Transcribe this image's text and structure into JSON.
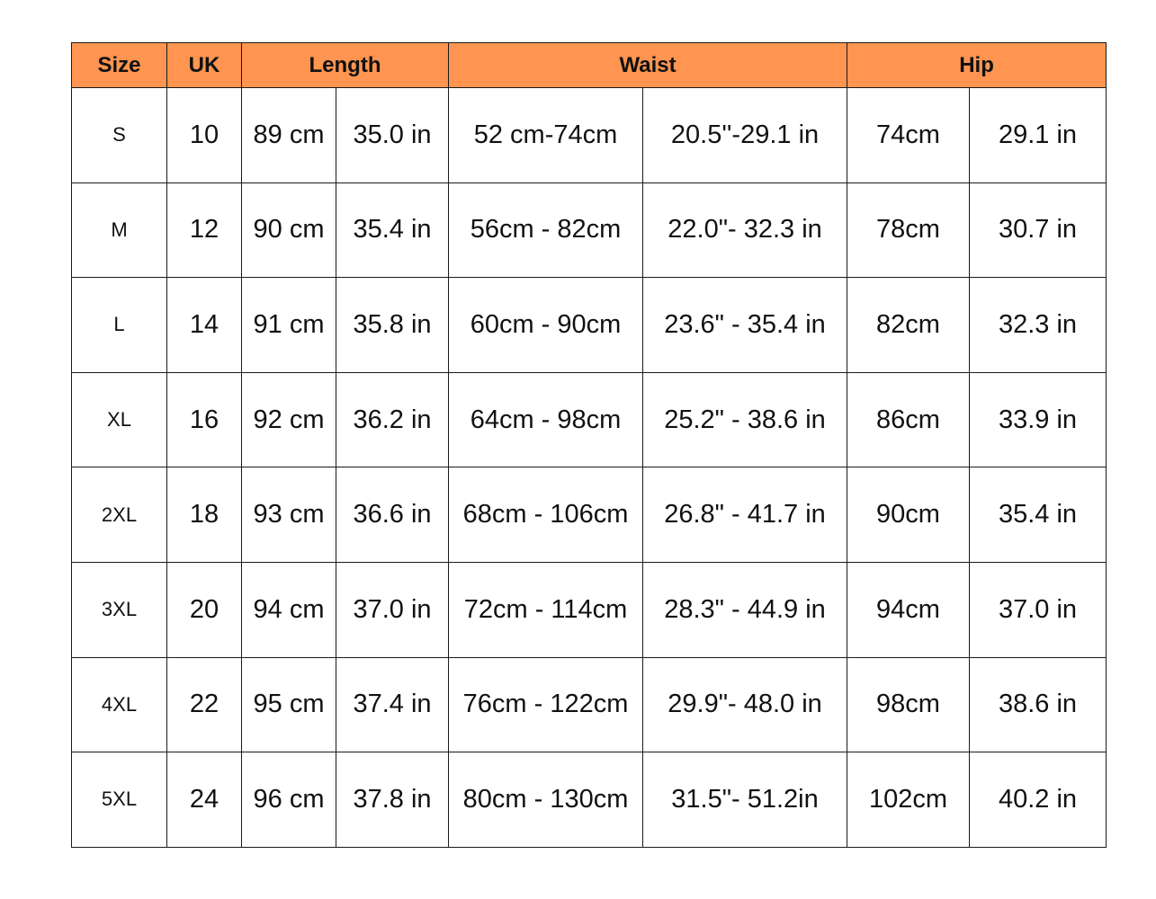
{
  "colors": {
    "header_bg": "#FF9550",
    "border": "#1a1a1a"
  },
  "headers": {
    "size": "Size",
    "uk": "UK",
    "length": "Length",
    "waist": "Waist",
    "hip": "Hip"
  },
  "rows": [
    {
      "size": "S",
      "uk": "10",
      "length_cm": "89 cm",
      "length_in": "35.0 in",
      "waist_cm": "52 cm-74cm",
      "waist_in": "20.5''-29.1 in",
      "hip_cm": "74cm",
      "hip_in": "29.1 in"
    },
    {
      "size": "M",
      "uk": "12",
      "length_cm": "90 cm",
      "length_in": "35.4 in",
      "waist_cm": "56cm - 82cm",
      "waist_in": "22.0\"- 32.3 in",
      "hip_cm": "78cm",
      "hip_in": "30.7 in"
    },
    {
      "size": "L",
      "uk": "14",
      "length_cm": "91 cm",
      "length_in": "35.8 in",
      "waist_cm": "60cm - 90cm",
      "waist_in": "23.6\" - 35.4 in",
      "hip_cm": "82cm",
      "hip_in": "32.3 in"
    },
    {
      "size": "XL",
      "uk": "16",
      "length_cm": "92 cm",
      "length_in": "36.2 in",
      "waist_cm": "64cm - 98cm",
      "waist_in": "25.2\" - 38.6 in",
      "hip_cm": "86cm",
      "hip_in": "33.9 in"
    },
    {
      "size": "2XL",
      "uk": "18",
      "length_cm": "93 cm",
      "length_in": "36.6 in",
      "waist_cm": "68cm - 106cm",
      "waist_in": "26.8\" - 41.7 in",
      "hip_cm": "90cm",
      "hip_in": "35.4 in"
    },
    {
      "size": "3XL",
      "uk": "20",
      "length_cm": "94 cm",
      "length_in": "37.0 in",
      "waist_cm": "72cm - 114cm",
      "waist_in": "28.3\" - 44.9 in",
      "hip_cm": "94cm",
      "hip_in": "37.0 in"
    },
    {
      "size": "4XL",
      "uk": "22",
      "length_cm": "95 cm",
      "length_in": "37.4 in",
      "waist_cm": "76cm - 122cm",
      "waist_in": "29.9\"- 48.0 in",
      "hip_cm": "98cm",
      "hip_in": "38.6 in"
    },
    {
      "size": "5XL",
      "uk": "24",
      "length_cm": "96 cm",
      "length_in": "37.8 in",
      "waist_cm": "80cm - 130cm",
      "waist_in": "31.5\"- 51.2in",
      "hip_cm": "102cm",
      "hip_in": "40.2 in"
    }
  ]
}
